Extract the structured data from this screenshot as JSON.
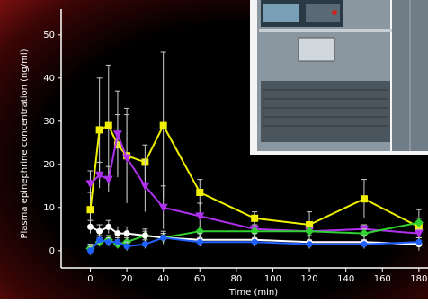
{
  "chart_data": {
    "type": "line",
    "x_label": "Time (min)",
    "y_label": "Plasma epinephrine concentration (ng/ml)",
    "x": [
      0,
      5,
      10,
      15,
      20,
      30,
      40,
      60,
      90,
      120,
      150,
      180
    ],
    "xlim": [
      -16,
      185
    ],
    "xticks": [
      0,
      20,
      40,
      60,
      80,
      100,
      120,
      140,
      160,
      180
    ],
    "ylim": [
      -4,
      56
    ],
    "yticks": [
      0,
      10,
      20,
      30,
      40,
      50
    ],
    "series": [
      {
        "color": "#f0f000",
        "marker": "square",
        "values": [
          9.5,
          28,
          29,
          24.5,
          22,
          20.5,
          29,
          13.5,
          7.5,
          6,
          12,
          5.5
        ],
        "errors": [
          4,
          12,
          14,
          7,
          11,
          4,
          17,
          3,
          1.5,
          3,
          4.5,
          4
        ]
      },
      {
        "color": "#b030f0",
        "marker": "triangle",
        "values": [
          15.5,
          17.5,
          16.5,
          27,
          21.5,
          15,
          10,
          8,
          5,
          4.5,
          5,
          4
        ],
        "errors": [
          3,
          3,
          3,
          10,
          10,
          6,
          5,
          3,
          1,
          1,
          1,
          1
        ]
      },
      {
        "color": "#30d030",
        "marker": "diamond",
        "values": [
          0.5,
          2,
          2.5,
          1.5,
          2,
          3.5,
          3,
          4.5,
          4.5,
          4.5,
          4,
          6.5
        ],
        "errors": [
          1,
          1,
          1,
          1,
          1,
          1,
          1,
          1,
          1,
          1,
          1,
          1
        ]
      },
      {
        "color": "#ffffff",
        "marker": "circle",
        "values": [
          5.5,
          4.5,
          5.5,
          4,
          4,
          3.5,
          3,
          2.5,
          2.5,
          2,
          2,
          1.5
        ],
        "errors": [
          1.5,
          1.5,
          1.5,
          1.5,
          1.5,
          1.5,
          1.5,
          1.5,
          1.5,
          1.5,
          1.5,
          1.5
        ]
      },
      {
        "color": "#2060ff",
        "marker": "circle",
        "values": [
          0,
          2.5,
          2,
          2,
          1,
          1.5,
          3,
          2,
          2,
          1.5,
          1.5,
          2
        ],
        "errors": [
          1,
          1,
          1,
          1,
          1,
          1,
          1,
          1,
          1,
          1,
          1,
          1
        ]
      }
    ]
  }
}
